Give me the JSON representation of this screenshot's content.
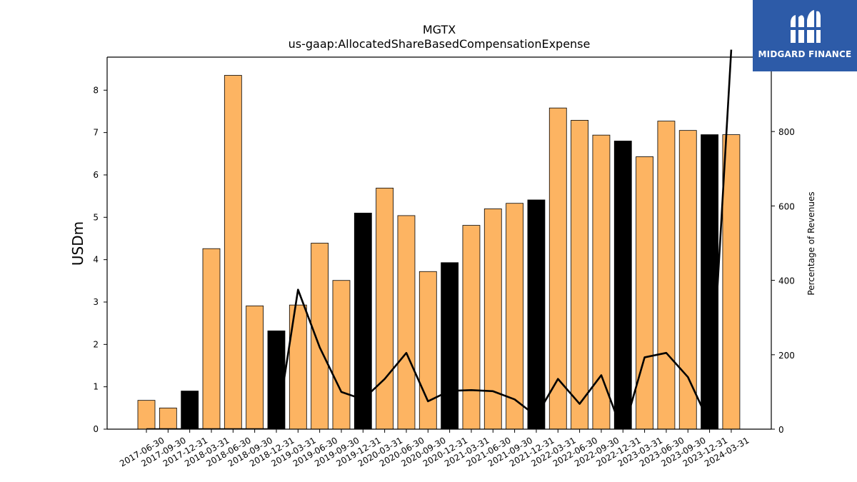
{
  "chart_data": {
    "type": "bar",
    "title": "MGTX",
    "subtitle": "us-gaap:AllocatedShareBasedCompensationExpense",
    "ylabel": "USDm",
    "y2label": "Percentage of Revenues",
    "ylim": [
      0,
      8.78
    ],
    "y2lim": [
      0,
      1000
    ],
    "yticks": [
      0,
      1,
      2,
      3,
      4,
      5,
      6,
      7,
      8
    ],
    "y2ticks": [
      0,
      200,
      400,
      600,
      800
    ],
    "grid": false,
    "categories": [
      "2017-06-30",
      "2017-09-30",
      "2017-12-31",
      "2018-03-31",
      "2018-06-30",
      "2018-09-30",
      "2018-12-31",
      "2019-03-31",
      "2019-06-30",
      "2019-09-30",
      "2019-12-31",
      "2020-03-31",
      "2020-06-30",
      "2020-09-30",
      "2020-12-31",
      "2021-03-31",
      "2021-06-30",
      "2021-09-30",
      "2021-12-31",
      "2022-03-31",
      "2022-06-30",
      "2022-09-30",
      "2022-12-31",
      "2023-03-31",
      "2023-06-30",
      "2023-09-30",
      "2023-12-31",
      "2024-03-31"
    ],
    "series": [
      {
        "type": "bar",
        "values": [
          0.68,
          0.5,
          0.9,
          4.26,
          8.35,
          2.91,
          2.32,
          2.93,
          4.39,
          3.51,
          5.1,
          5.69,
          5.04,
          3.72,
          3.93,
          4.81,
          5.2,
          5.33,
          5.41,
          7.58,
          7.29,
          6.94,
          6.8,
          6.43,
          7.27,
          7.05,
          6.95,
          6.95
        ],
        "highlight": [
          false,
          false,
          true,
          false,
          false,
          false,
          true,
          false,
          false,
          false,
          true,
          false,
          false,
          false,
          true,
          false,
          false,
          false,
          true,
          false,
          false,
          false,
          true,
          false,
          false,
          false,
          true,
          false
        ]
      },
      {
        "type": "line",
        "axis": "right",
        "values": [
          0,
          0,
          0,
          0,
          0,
          0,
          0,
          375,
          220,
          100,
          80,
          135,
          205,
          75,
          103,
          105,
          102,
          80,
          35,
          135,
          68,
          145,
          -10,
          193,
          205,
          140,
          15,
          1020
        ]
      }
    ],
    "colors": {
      "bar": "#fdb462",
      "bar_highlight": "#000000",
      "line": "#000000",
      "edge": "#000000"
    }
  },
  "logo": {
    "text": "MIDGARD FINANCE",
    "background": "#2d5ba8",
    "icon": "midgard-m-logo-icon"
  }
}
